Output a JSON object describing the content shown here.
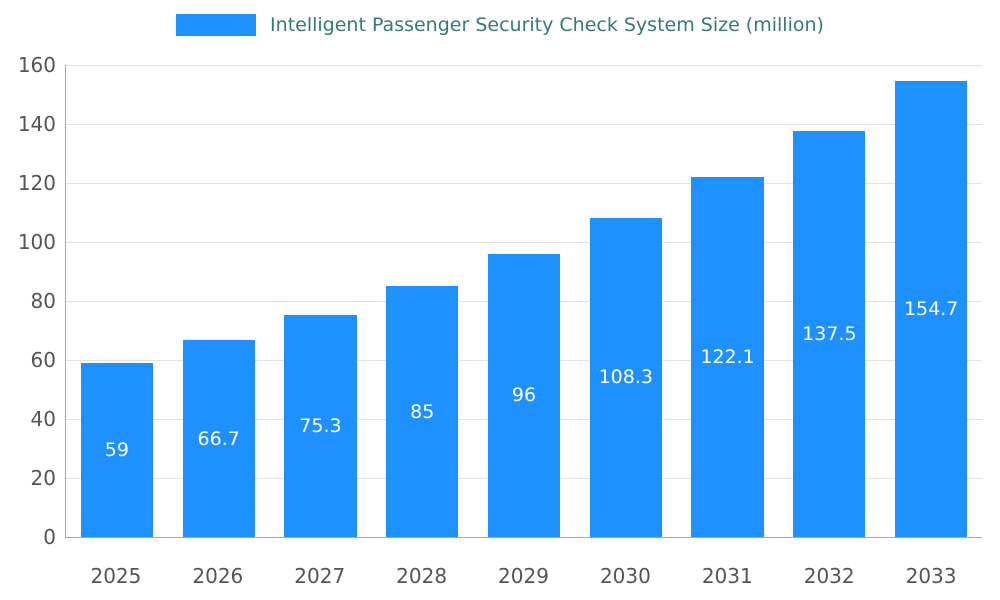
{
  "chart_data": {
    "type": "bar",
    "title": "Intelligent Passenger Security Check System Size (million)",
    "categories": [
      "2025",
      "2026",
      "2027",
      "2028",
      "2029",
      "2030",
      "2031",
      "2032",
      "2033"
    ],
    "values": [
      59,
      66.7,
      75.3,
      85,
      96,
      108.3,
      122.1,
      137.5,
      154.7
    ],
    "value_labels": [
      "59",
      "66.7",
      "75.3",
      "85",
      "96",
      "108.3",
      "122.1",
      "137.5",
      "154.7"
    ],
    "ylabel": "",
    "xlabel": "",
    "ylim": [
      0,
      160
    ],
    "yticks": [
      0,
      20,
      40,
      60,
      80,
      100,
      120,
      140,
      160
    ],
    "grid": true,
    "legend_position": "top",
    "bar_color": "#1E90FF",
    "bar_label_color": "#ffffff",
    "axis_text_color": "#555555",
    "title_color": "#337a7a"
  },
  "legend": {
    "label": "Intelligent Passenger Security Check System Size (million)",
    "swatch_color": "#1E90FF"
  }
}
